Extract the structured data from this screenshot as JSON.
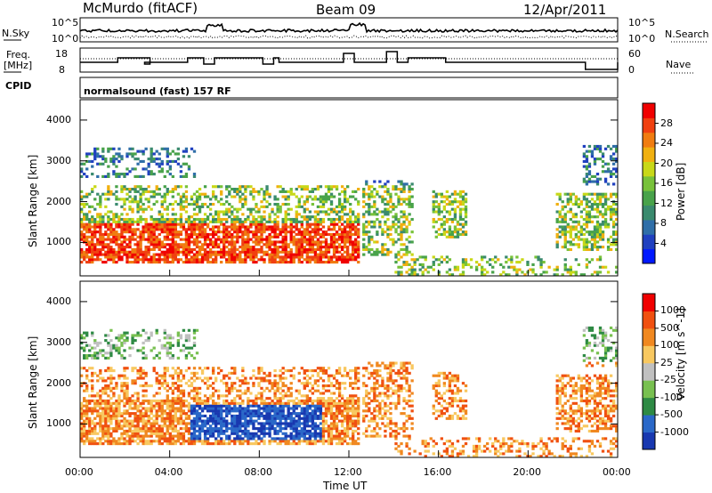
{
  "header": {
    "station": "McMurdo (fitACF)",
    "beam": "Beam 09",
    "date": "12/Apr/2011"
  },
  "noise_panel": {
    "left_label": "N.Sky",
    "right_label": "N.Search",
    "left_ticks": [
      "10^5",
      "10^0"
    ],
    "right_ticks": [
      "10^5",
      "10^0"
    ]
  },
  "freq_panel": {
    "left_label_1": "Freq.",
    "left_label_2": "[MHz]",
    "right_label": "Nave",
    "left_ticks": [
      "18",
      "8"
    ],
    "right_ticks": [
      "60",
      "0"
    ]
  },
  "cpid": {
    "label": "CPID",
    "text": "normalsound (fast) 157 RF"
  },
  "chart_data": [
    {
      "type": "heatmap",
      "parameter": "Power",
      "ylabel": "Slant Range [km]",
      "xlabel": "",
      "colorbar_label": "Power [dB]",
      "colorbar_ticks": [
        "28",
        "24",
        "20",
        "16",
        "12",
        "8",
        "4"
      ],
      "colorbar_colors": [
        "#0018ff",
        "#2040c0",
        "#2f6ea8",
        "#3a8a6e",
        "#48a24a",
        "#78c23a",
        "#c8d818",
        "#f0b010",
        "#f07c10",
        "#f04010",
        "#f00000"
      ],
      "y_ticks": [
        "4000",
        "3000",
        "2000",
        "1000"
      ],
      "ylim": [
        180,
        4500
      ],
      "xlim": [
        "00:00",
        "24:00"
      ]
    },
    {
      "type": "heatmap",
      "parameter": "Velocity",
      "ylabel": "Slant Range [km]",
      "xlabel": "Time UT",
      "colorbar_label": "Velocity [m s^-1]",
      "colorbar_ticks": [
        "1000",
        "500",
        "100",
        "25",
        "-25",
        "-100",
        "-500",
        "-1000"
      ],
      "colorbar_colors": [
        "#1838b0",
        "#2a68c8",
        "#2e8a44",
        "#78c050",
        "#c0c0c0",
        "#f8c860",
        "#f08820",
        "#f05010",
        "#f00000"
      ],
      "y_ticks": [
        "4000",
        "3000",
        "2000",
        "1000"
      ],
      "x_ticks": [
        "00:00",
        "04:00",
        "08:00",
        "12:00",
        "16:00",
        "20:00",
        "00:00"
      ],
      "ylim": [
        180,
        4500
      ],
      "xlim": [
        "00:00",
        "24:00"
      ]
    }
  ]
}
